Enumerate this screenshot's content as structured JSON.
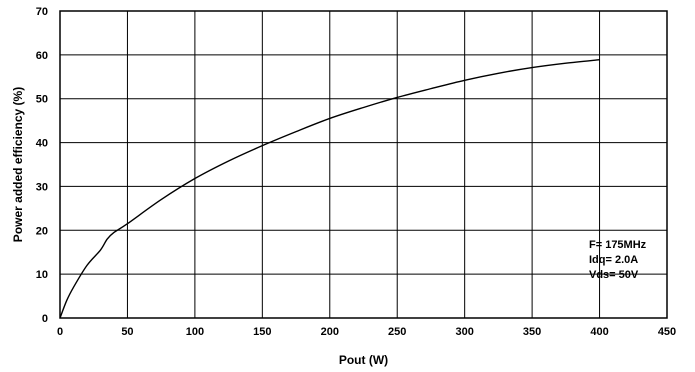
{
  "chart_data": {
    "type": "line",
    "title": "",
    "xlabel": "Pout (W)",
    "ylabel": "Power added efficiency (%)",
    "xlim": [
      0,
      450
    ],
    "ylim": [
      0,
      70
    ],
    "xticks": [
      0,
      50,
      100,
      150,
      200,
      250,
      300,
      350,
      400,
      450
    ],
    "yticks": [
      0,
      10,
      20,
      30,
      40,
      50,
      60,
      70
    ],
    "grid": true,
    "series": [
      {
        "x": [
          0,
          5,
          10,
          20,
          30,
          35,
          40,
          50,
          75,
          100,
          125,
          150,
          175,
          200,
          225,
          250,
          275,
          300,
          325,
          350,
          375,
          400
        ],
        "y": [
          0,
          4,
          7,
          12,
          15.5,
          18,
          19.5,
          21.5,
          27,
          31.8,
          35.8,
          39.3,
          42.5,
          45.5,
          48,
          50.3,
          52.3,
          54.2,
          55.8,
          57.1,
          58.1,
          58.9
        ]
      }
    ],
    "annotations": [
      "F= 175MHz",
      "Idq= 2.0A",
      "Vds= 50V"
    ]
  }
}
